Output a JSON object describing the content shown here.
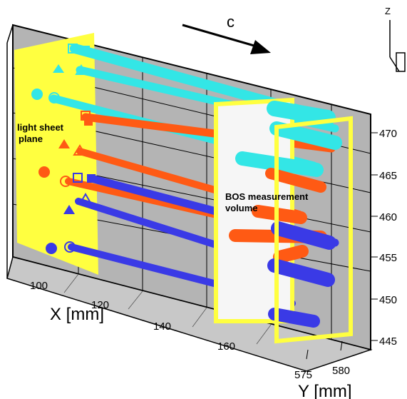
{
  "flow_direction_label": "c",
  "z_axis_label": "Z",
  "light_sheet_label": [
    "light sheet",
    "plane"
  ],
  "bos_volume_label": [
    "BOS measurement",
    "volume"
  ],
  "x_axis": {
    "title": "X [mm]",
    "ticks": [
      "100",
      "120",
      "140",
      "160"
    ]
  },
  "y_axis": {
    "title": "Y [mm]",
    "ticks": [
      "575",
      "580"
    ]
  },
  "z_axis": {
    "ticks": [
      "470",
      "465",
      "460",
      "455",
      "450",
      "445"
    ]
  },
  "colors": {
    "cyan": "#33e6e6",
    "orange": "#ff5a14",
    "blue": "#3a3ae6",
    "yellow": "#ffff40",
    "wall": "#b4b4b4",
    "floor": "#c8c8c8"
  }
}
